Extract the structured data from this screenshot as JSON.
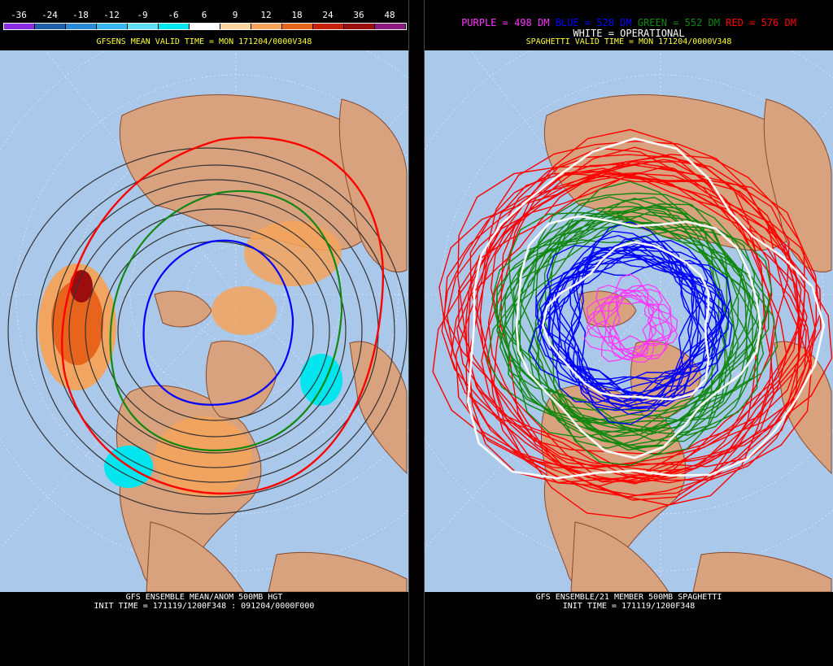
{
  "left": {
    "legend": {
      "labels": [
        "-36",
        "-24",
        "-18",
        "-12",
        "-9",
        "-6",
        "6",
        "9",
        "12",
        "18",
        "24",
        "36",
        "48"
      ],
      "colors": [
        "#8a2be2",
        "#1f5fa8",
        "#2a8ad5",
        "#38b6f0",
        "#5fe0f0",
        "#00e5ee",
        "#ffffff",
        "#ffd4a0",
        "#f5a35a",
        "#e8631c",
        "#c8220e",
        "#9d0d0d",
        "#8b1a7e"
      ]
    },
    "valid_time": "GFSENS MEAN VALID TIME = MON 171204/0000V348",
    "footer_line1": "GFS ENSEMBLE MEAN/ANOM 500MB HGT",
    "footer_line2": "INIT TIME = 171119/1200F348 : 091204/0000F000"
  },
  "right": {
    "header": {
      "purple": "PURPLE = 498 DM",
      "blue": "BLUE = 528 DM",
      "green": "GREEN = 552 DM",
      "red": "RED = 576 DM",
      "white": "WHITE = OPERATIONAL"
    },
    "valid_time": "SPAGHETTI VALID TIME = MON 171204/0000V348",
    "footer_line1": "GFS ENSEMBLE/21 MEMBER 500MB SPAGHETTI",
    "footer_line2": "INIT TIME = 171119/1200F348"
  },
  "colors": {
    "ocean": "#a9c8ea",
    "land": "#d9a27e",
    "coast": "#8b4a2b",
    "purple": "#ff33ff",
    "blue": "#0000ff",
    "green": "#118811",
    "red": "#ff0000",
    "white": "#ffffff",
    "contour": "#333333",
    "subtitle": "#ffff33"
  }
}
